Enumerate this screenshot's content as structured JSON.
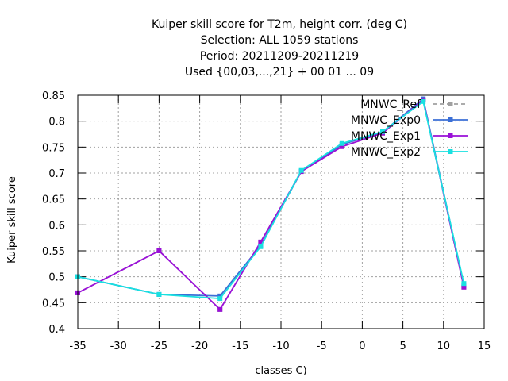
{
  "chart_data": {
    "type": "line",
    "title_lines": [
      "Kuiper skill score  for T2m, height corr. (deg C)",
      "Selection: ALL    1059 stations",
      "Period: 20211209-20211219",
      "Used {00,03,...,21} + 00 01 ... 09"
    ],
    "xlabel": "classes C)",
    "ylabel": "Kuiper skill score",
    "xlim": [
      -35,
      15
    ],
    "ylim": [
      0.4,
      0.85
    ],
    "xticks": [
      -35,
      -30,
      -25,
      -20,
      -15,
      -10,
      -5,
      0,
      5,
      10,
      15
    ],
    "yticks": [
      0.4,
      0.45,
      0.5,
      0.55,
      0.6,
      0.65,
      0.7,
      0.75,
      0.8,
      0.85
    ],
    "grid": true,
    "legend_position": "top-right",
    "series": [
      {
        "name": "MNWC_Ref",
        "color": "#a0a0a0",
        "dashed": true,
        "x": [
          -35,
          -25,
          -17.5,
          -12.5,
          -7.5,
          -2.5,
          2.5,
          7.5,
          12.5
        ],
        "y": [
          0.469,
          0.55,
          0.437,
          0.567,
          0.703,
          0.751,
          0.777,
          0.841,
          0.48
        ]
      },
      {
        "name": "MNWC_Exp0",
        "color": "#3b6fd6",
        "dashed": false,
        "x": [
          -35,
          -25,
          -17.5,
          -12.5,
          -7.5,
          -2.5,
          2.5,
          7.5,
          12.5
        ],
        "y": [
          0.5,
          0.466,
          0.463,
          0.56,
          0.703,
          0.755,
          0.779,
          0.843,
          0.484
        ]
      },
      {
        "name": "MNWC_Exp1",
        "color": "#9a10d8",
        "dashed": false,
        "x": [
          -35,
          -25,
          -17.5,
          -12.5,
          -7.5,
          -2.5,
          2.5,
          7.5,
          12.5
        ],
        "y": [
          0.469,
          0.55,
          0.437,
          0.567,
          0.703,
          0.751,
          0.777,
          0.841,
          0.48
        ]
      },
      {
        "name": "MNWC_Exp2",
        "color": "#19e0e0",
        "dashed": false,
        "x": [
          -35,
          -25,
          -17.5,
          -12.5,
          -7.5,
          -2.5,
          2.5,
          7.5,
          12.5
        ],
        "y": [
          0.5,
          0.466,
          0.458,
          0.558,
          0.705,
          0.757,
          0.78,
          0.838,
          0.487
        ]
      }
    ]
  }
}
